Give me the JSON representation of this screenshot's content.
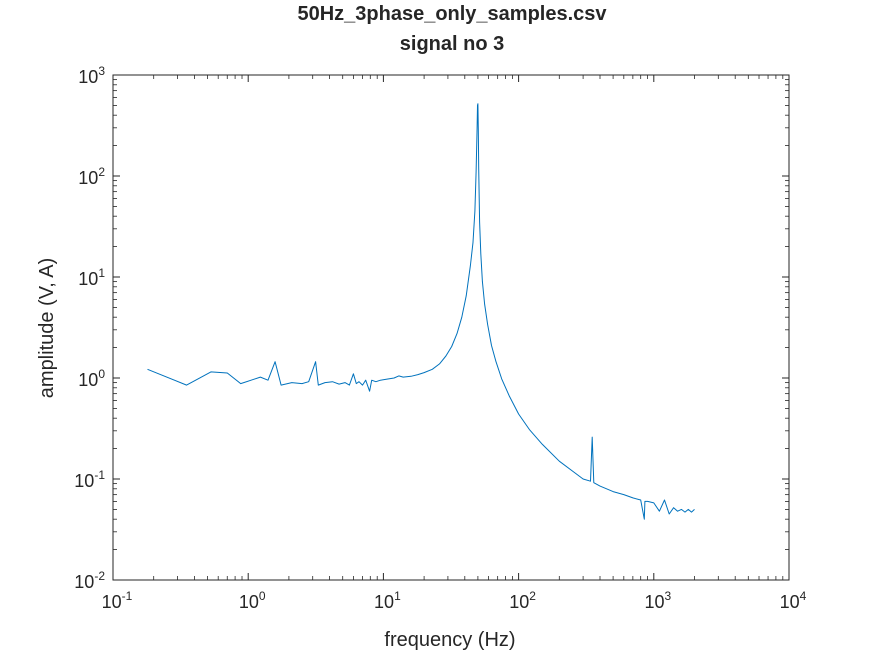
{
  "chart_data": {
    "type": "line",
    "title": "50Hz_3phase_only_samples.csv",
    "subtitle": "signal no 3",
    "xlabel": "frequency (Hz)",
    "ylabel": "amplitude (V, A)",
    "xscale": "log",
    "yscale": "log",
    "xlim": [
      0.1,
      10000
    ],
    "ylim": [
      0.01,
      1000
    ],
    "grid": false,
    "legend": "none",
    "x_ticks": [
      {
        "base": "10",
        "exp": "-1",
        "value": 0.1
      },
      {
        "base": "10",
        "exp": "0",
        "value": 1
      },
      {
        "base": "10",
        "exp": "1",
        "value": 10
      },
      {
        "base": "10",
        "exp": "2",
        "value": 100
      },
      {
        "base": "10",
        "exp": "3",
        "value": 1000
      },
      {
        "base": "10",
        "exp": "4",
        "value": 10000
      }
    ],
    "y_ticks": [
      {
        "base": "10",
        "exp": "-2",
        "value": 0.01
      },
      {
        "base": "10",
        "exp": "-1",
        "value": 0.1
      },
      {
        "base": "10",
        "exp": "0",
        "value": 1
      },
      {
        "base": "10",
        "exp": "1",
        "value": 10
      },
      {
        "base": "10",
        "exp": "2",
        "value": 100
      },
      {
        "base": "10",
        "exp": "3",
        "value": 1000
      }
    ],
    "series": [
      {
        "color": "#0072bd",
        "x": [
          0.18,
          0.35,
          0.53,
          0.7,
          0.88,
          1.05,
          1.23,
          1.4,
          1.58,
          1.75,
          2.1,
          2.5,
          2.8,
          3.15,
          3.3,
          3.7,
          4.2,
          4.7,
          5.2,
          5.6,
          6.0,
          6.3,
          6.6,
          7.0,
          7.4,
          7.9,
          8.2,
          8.8,
          9.5,
          10.5,
          12,
          13,
          14,
          16,
          18,
          20,
          23,
          26,
          29,
          32,
          35,
          38,
          41,
          44,
          46,
          47.5,
          48.5,
          49.3,
          49.7,
          50,
          50.3,
          50.7,
          51.5,
          52.5,
          54,
          56,
          59,
          63,
          68,
          75,
          85,
          100,
          120,
          150,
          200,
          250,
          300,
          340,
          350,
          360,
          400,
          500,
          600,
          700,
          800,
          850,
          860,
          900,
          1000,
          1100,
          1200,
          1300,
          1400,
          1500,
          1600,
          1700,
          1800,
          1900,
          2000
        ],
        "y": [
          1.22,
          0.85,
          1.15,
          1.12,
          0.88,
          0.95,
          1.02,
          0.95,
          1.45,
          0.85,
          0.9,
          0.88,
          0.92,
          1.45,
          0.85,
          0.9,
          0.92,
          0.87,
          0.9,
          0.85,
          1.1,
          0.88,
          0.92,
          0.85,
          0.95,
          0.74,
          0.95,
          0.92,
          0.95,
          0.97,
          1.0,
          1.05,
          1.02,
          1.04,
          1.08,
          1.13,
          1.22,
          1.38,
          1.65,
          2.05,
          2.75,
          4.0,
          6.5,
          13,
          22,
          45,
          110,
          300,
          500,
          520,
          290,
          120,
          35,
          17,
          9,
          5.4,
          3.4,
          2.1,
          1.45,
          0.98,
          0.67,
          0.44,
          0.31,
          0.22,
          0.15,
          0.12,
          0.1,
          0.095,
          0.26,
          0.092,
          0.085,
          0.075,
          0.07,
          0.065,
          0.062,
          0.04,
          0.06,
          0.06,
          0.058,
          0.048,
          0.062,
          0.045,
          0.052,
          0.048,
          0.05,
          0.047,
          0.05,
          0.047,
          0.05
        ]
      }
    ]
  }
}
